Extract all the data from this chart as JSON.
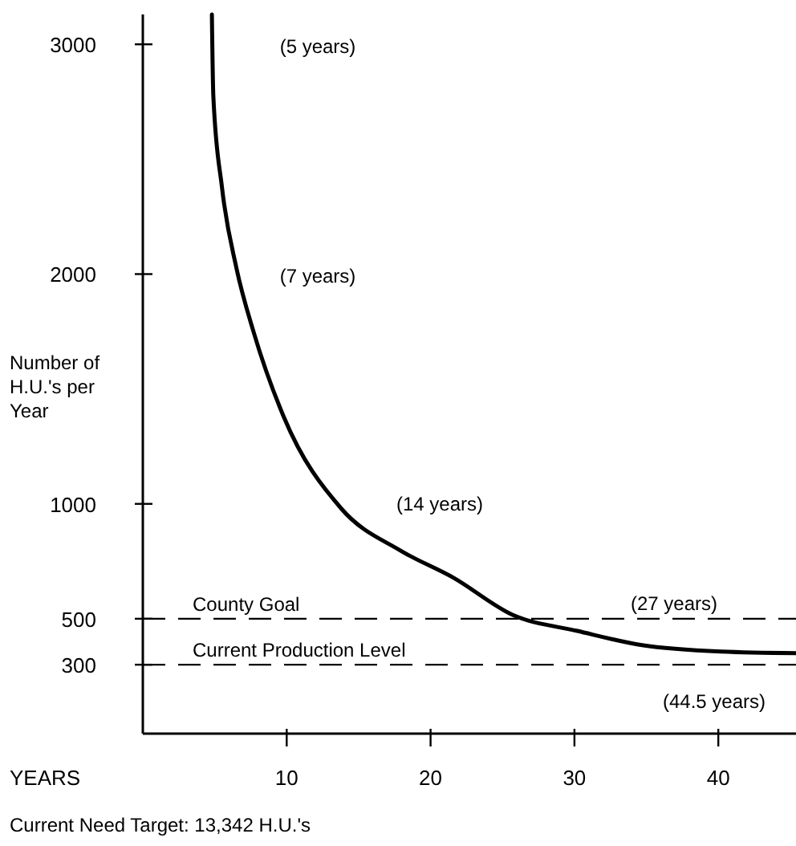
{
  "chart_data": {
    "type": "line",
    "xlabel": "YEARS",
    "ylabel": "Number of H.U.'s per Year",
    "x": [
      4.8,
      4.9,
      5.5,
      6.5,
      7.7,
      9.8,
      13.8,
      17.9,
      21.6,
      25.7,
      30.2,
      34.7,
      40.2,
      45.4
    ],
    "series": [
      {
        "color": "#000000",
        "values": [
          3130,
          2776,
          2378,
          2028,
          1748,
          1378,
          979,
          797,
          678,
          517,
          447,
          385,
          357,
          350
        ]
      }
    ],
    "xlim": [
      0,
      45.4
    ],
    "ylim": [
      0,
      3130
    ],
    "xticks": [
      10,
      20,
      30,
      40
    ],
    "yticks": [
      300,
      500,
      1000,
      2000,
      3000
    ],
    "ref_lines": [
      {
        "axis": "y",
        "value": 500,
        "label": "County Goal",
        "line_style": "dashed"
      },
      {
        "axis": "y",
        "value": 300,
        "label": "Current Production Level",
        "line_style": "dashed"
      }
    ],
    "annotations": [
      "(5 years)",
      "(7 years)",
      "(14 years)",
      "(27 years)",
      "(44.5 years)",
      "Current Need Target: 13,342 H.U.'s"
    ],
    "grid": false,
    "marker": "none",
    "line_style": "solid"
  }
}
